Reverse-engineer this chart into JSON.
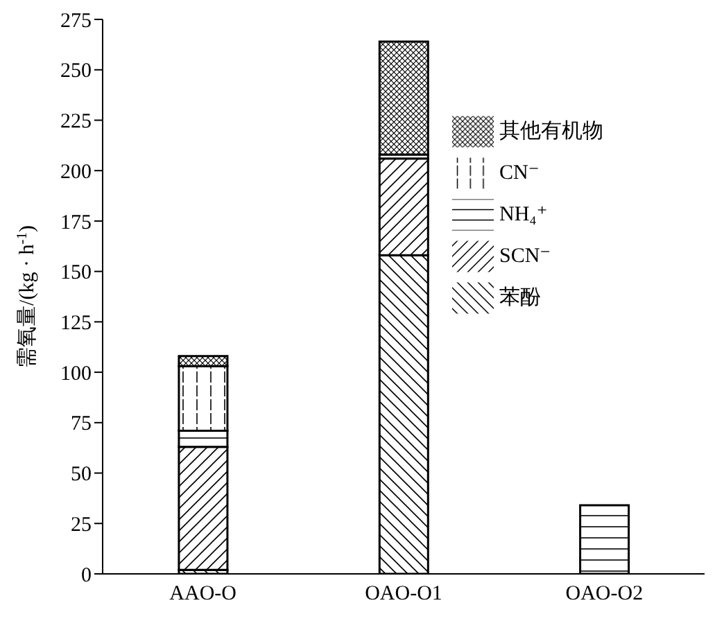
{
  "chart_data": {
    "type": "bar",
    "ylabel": "需氧量/(kg · h$^{-1}$)",
    "categories": [
      "AAO-O",
      "OAO-O1",
      "OAO-O2"
    ],
    "stacked": true,
    "legend": "top right",
    "ylim": [
      0,
      275
    ],
    "yticks": [
      0,
      25,
      50,
      75,
      100,
      125,
      150,
      175,
      200,
      225,
      250,
      275
    ],
    "grid": false,
    "series": [
      {
        "name": "苯酚",
        "color": "#000000",
        "values": [
          2,
          158,
          0
        ]
      },
      {
        "name": "SCN⁻",
        "color": "#000000",
        "values": [
          61,
          48,
          0
        ]
      },
      {
        "name": "NH₄⁺",
        "color": "#000000",
        "values": [
          8,
          2,
          34
        ]
      },
      {
        "name": "CN⁻",
        "color": "#000000",
        "values": [
          32,
          0,
          0
        ]
      },
      {
        "name": "其他有机物",
        "color": "#000000",
        "values": [
          5,
          56,
          0
        ]
      }
    ]
  }
}
